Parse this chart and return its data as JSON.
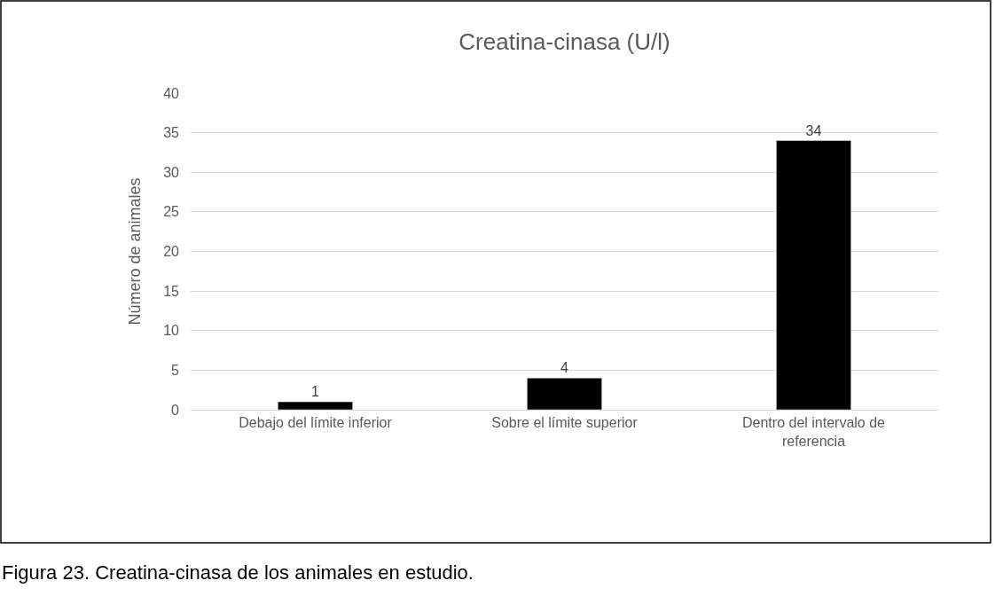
{
  "chart_data": {
    "type": "bar",
    "title": "Creatina-cinasa (U/l)",
    "ylabel": "Número de animales",
    "categories": [
      "Debajo del límite inferior",
      "Sobre el límite superior",
      "Dentro del intervalo de referencia"
    ],
    "values": [
      1,
      4,
      34
    ],
    "color": "#000000",
    "ylim": [
      0,
      40
    ],
    "yticks": [
      0,
      5,
      10,
      15,
      20,
      25,
      30,
      35,
      40
    ],
    "grid": "y",
    "data_labels": true,
    "legend": false,
    "annotations": [
      "Figura 23. Creatina-cinasa de los animales en estudio."
    ]
  }
}
